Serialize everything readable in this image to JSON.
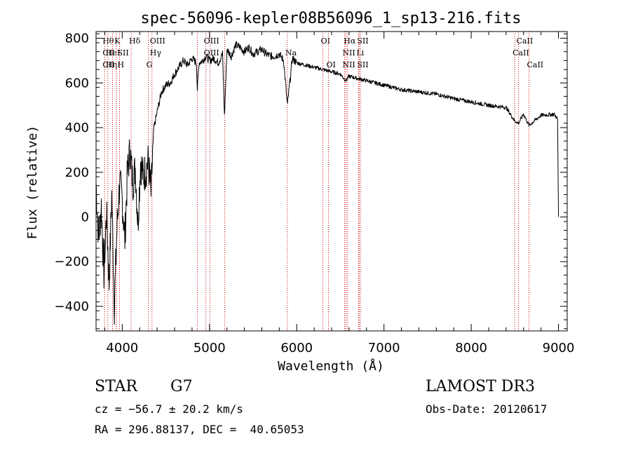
{
  "chart_data": {
    "type": "line",
    "title": "spec-56096-kepler08B56096_1_sp13-216.fits",
    "xlabel": "Wavelength (Å)",
    "ylabel": "Flux (relative)",
    "xlim": [
      3700,
      9100
    ],
    "ylim": [
      -510,
      830
    ],
    "x_ticks": [
      4000,
      5000,
      6000,
      7000,
      8000,
      9000
    ],
    "x_tick_labels": [
      "4000",
      "5000",
      "6000",
      "7000",
      "8000",
      "9000"
    ],
    "y_ticks": [
      -400,
      -200,
      0,
      200,
      400,
      600,
      800
    ],
    "y_tick_labels": [
      "−400",
      "−200",
      "0",
      "200",
      "400",
      "600",
      "800"
    ],
    "grid": false,
    "series": [
      {
        "name": "flux",
        "x": [
          3700,
          3730,
          3760,
          3790,
          3820,
          3850,
          3880,
          3910,
          3940,
          3970,
          4000,
          4030,
          4060,
          4090,
          4120,
          4150,
          4180,
          4210,
          4240,
          4270,
          4300,
          4330,
          4360,
          4400,
          4450,
          4500,
          4550,
          4600,
          4650,
          4700,
          4750,
          4800,
          4850,
          4861,
          4880,
          4920,
          4960,
          5000,
          5050,
          5100,
          5150,
          5172,
          5200,
          5250,
          5300,
          5350,
          5400,
          5450,
          5500,
          5550,
          5600,
          5650,
          5700,
          5750,
          5800,
          5850,
          5893,
          5950,
          6000,
          6100,
          6200,
          6300,
          6400,
          6500,
          6563,
          6600,
          6700,
          6800,
          7000,
          7200,
          7400,
          7600,
          7800,
          8000,
          8200,
          8400,
          8498,
          8542,
          8600,
          8662,
          8800,
          8950,
          8990,
          9000
        ],
        "y": [
          150,
          -100,
          50,
          -250,
          20,
          -300,
          100,
          -400,
          -50,
          150,
          80,
          -100,
          200,
          300,
          150,
          220,
          -30,
          250,
          180,
          210,
          250,
          100,
          390,
          470,
          560,
          590,
          600,
          640,
          670,
          700,
          680,
          710,
          690,
          570,
          690,
          700,
          720,
          700,
          710,
          690,
          730,
          450,
          750,
          720,
          770,
          760,
          740,
          760,
          730,
          740,
          750,
          730,
          720,
          720,
          730,
          700,
          500,
          710,
          690,
          680,
          670,
          660,
          650,
          640,
          610,
          630,
          620,
          610,
          590,
          570,
          560,
          550,
          530,
          515,
          500,
          490,
          430,
          420,
          460,
          410,
          455,
          460,
          440,
          0
        ]
      }
    ],
    "line_markers": [
      {
        "wavelength": 3798,
        "labels": [
          "Hθ",
          "CII",
          "CII"
        ]
      },
      {
        "wavelength": 3835,
        "labels": [
          "",
          "HeI",
          "Hη"
        ]
      },
      {
        "wavelength": 3889,
        "labels": [
          "",
          "",
          ""
        ]
      },
      {
        "wavelength": 3934,
        "labels": [
          "K",
          "",
          ""
        ]
      },
      {
        "wavelength": 3969,
        "labels": [
          "",
          "SII",
          "H"
        ]
      },
      {
        "wavelength": 4102,
        "labels": [
          "Hδ",
          "",
          ""
        ]
      },
      {
        "wavelength": 4300,
        "labels": [
          "",
          "",
          "G"
        ]
      },
      {
        "wavelength": 4341,
        "labels": [
          "OIII",
          "Hγ",
          ""
        ]
      },
      {
        "wavelength": 4861,
        "labels": [
          "",
          "",
          ""
        ]
      },
      {
        "wavelength": 4959,
        "labels": [
          "OIII",
          "OIII",
          ""
        ]
      },
      {
        "wavelength": 5007,
        "labels": [
          "",
          "",
          ""
        ]
      },
      {
        "wavelength": 5175,
        "labels": [
          "",
          "",
          ""
        ]
      },
      {
        "wavelength": 5893,
        "labels": [
          "",
          "Na",
          ""
        ]
      },
      {
        "wavelength": 6300,
        "labels": [
          "OI",
          "",
          ""
        ]
      },
      {
        "wavelength": 6364,
        "labels": [
          "",
          "",
          "OI"
        ]
      },
      {
        "wavelength": 6548,
        "labels": [
          "",
          "NII",
          "NII"
        ]
      },
      {
        "wavelength": 6563,
        "labels": [
          "Hα",
          "",
          ""
        ]
      },
      {
        "wavelength": 6583,
        "labels": [
          "",
          "",
          ""
        ]
      },
      {
        "wavelength": 6708,
        "labels": [
          "",
          "Li",
          ""
        ]
      },
      {
        "wavelength": 6716,
        "labels": [
          "SII",
          "",
          "SII"
        ]
      },
      {
        "wavelength": 6731,
        "labels": [
          "",
          "",
          ""
        ]
      },
      {
        "wavelength": 8498,
        "labels": [
          "",
          "CaII",
          ""
        ]
      },
      {
        "wavelength": 8542,
        "labels": [
          "CaII",
          "",
          ""
        ]
      },
      {
        "wavelength": 8662,
        "labels": [
          "",
          "",
          "CaII"
        ]
      }
    ]
  },
  "info": {
    "object_class": "STAR",
    "subclass": "G7",
    "survey": "LAMOST DR3",
    "redshift": "cz = −56.7 ± 20.2 km/s",
    "obs_date": "Obs-Date: 20120617",
    "coords": "RA = 296.88137, DEC =  40.65053"
  },
  "colors": {
    "axis": "#000000",
    "spectrum": "#000000",
    "line_marker": "#cc0000"
  }
}
